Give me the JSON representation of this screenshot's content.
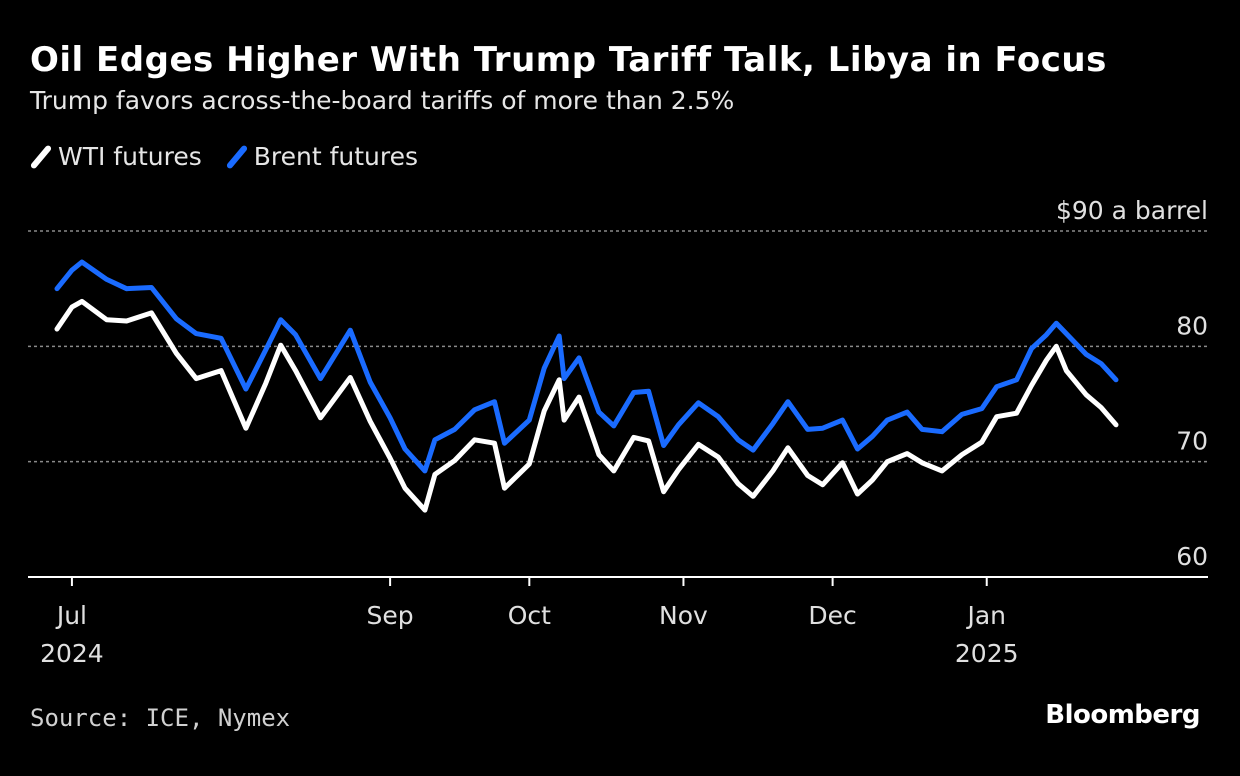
{
  "header": {
    "title": "Oil Edges Higher With Trump Tariff Talk, Libya in Focus",
    "subtitle": "Trump favors across-the-board tariffs of more than 2.5%"
  },
  "legend": [
    {
      "label": "WTI futures",
      "color": "#ffffff"
    },
    {
      "label": "Brent futures",
      "color": "#1a6bff"
    }
  ],
  "footer": {
    "source": "Source: ICE, Nymex",
    "logo": "Bloomberg"
  },
  "chart_data": {
    "type": "line",
    "title": "Oil Edges Higher With Trump Tariff Talk, Libya in Focus",
    "subtitle": "Trump favors across-the-board tariffs of more than 2.5%",
    "xlabel": "",
    "ylabel": "",
    "x_range": [
      "2024-06-28",
      "2025-01-27"
    ],
    "ylim": [
      60,
      90
    ],
    "y_ticks": [
      {
        "value": 90,
        "label": "$90 a barrel"
      },
      {
        "value": 80,
        "label": "80"
      },
      {
        "value": 70,
        "label": "70"
      },
      {
        "value": 60,
        "label": "60"
      }
    ],
    "x_ticks": [
      {
        "date": "2024-07-01",
        "label": "Jul",
        "sublabel": "2024"
      },
      {
        "date": "2024-09-03",
        "label": "Sep",
        "sublabel": ""
      },
      {
        "date": "2024-10-01",
        "label": "Oct",
        "sublabel": ""
      },
      {
        "date": "2024-11-01",
        "label": "Nov",
        "sublabel": ""
      },
      {
        "date": "2024-12-01",
        "label": "Dec",
        "sublabel": ""
      },
      {
        "date": "2025-01-01",
        "label": "Jan",
        "sublabel": "2025"
      }
    ],
    "grid": true,
    "legend_position": "top-left",
    "series": [
      {
        "name": "WTI futures",
        "color": "#ffffff",
        "points": [
          [
            "2024-06-28",
            81.5
          ],
          [
            "2024-07-01",
            83.4
          ],
          [
            "2024-07-03",
            83.9
          ],
          [
            "2024-07-08",
            82.3
          ],
          [
            "2024-07-12",
            82.2
          ],
          [
            "2024-07-17",
            82.9
          ],
          [
            "2024-07-22",
            79.4
          ],
          [
            "2024-07-26",
            77.2
          ],
          [
            "2024-07-31",
            77.9
          ],
          [
            "2024-08-05",
            72.9
          ],
          [
            "2024-08-09",
            76.8
          ],
          [
            "2024-08-12",
            80.1
          ],
          [
            "2024-08-15",
            77.9
          ],
          [
            "2024-08-20",
            73.8
          ],
          [
            "2024-08-26",
            77.3
          ],
          [
            "2024-08-30",
            73.5
          ],
          [
            "2024-09-03",
            70.3
          ],
          [
            "2024-09-06",
            67.7
          ],
          [
            "2024-09-10",
            65.8
          ],
          [
            "2024-09-12",
            68.9
          ],
          [
            "2024-09-16",
            70.1
          ],
          [
            "2024-09-20",
            71.9
          ],
          [
            "2024-09-24",
            71.6
          ],
          [
            "2024-09-26",
            67.7
          ],
          [
            "2024-10-01",
            69.8
          ],
          [
            "2024-10-04",
            74.4
          ],
          [
            "2024-10-07",
            77.1
          ],
          [
            "2024-10-08",
            73.6
          ],
          [
            "2024-10-11",
            75.6
          ],
          [
            "2024-10-15",
            70.6
          ],
          [
            "2024-10-18",
            69.2
          ],
          [
            "2024-10-22",
            72.1
          ],
          [
            "2024-10-25",
            71.8
          ],
          [
            "2024-10-28",
            67.4
          ],
          [
            "2024-10-31",
            69.3
          ],
          [
            "2024-11-04",
            71.5
          ],
          [
            "2024-11-08",
            70.4
          ],
          [
            "2024-11-12",
            68.1
          ],
          [
            "2024-11-15",
            67.0
          ],
          [
            "2024-11-19",
            69.2
          ],
          [
            "2024-11-22",
            71.2
          ],
          [
            "2024-11-26",
            68.8
          ],
          [
            "2024-11-29",
            68.0
          ],
          [
            "2024-12-03",
            69.9
          ],
          [
            "2024-12-06",
            67.2
          ],
          [
            "2024-12-09",
            68.4
          ],
          [
            "2024-12-12",
            70.0
          ],
          [
            "2024-12-16",
            70.7
          ],
          [
            "2024-12-19",
            69.9
          ],
          [
            "2024-12-23",
            69.2
          ],
          [
            "2024-12-27",
            70.6
          ],
          [
            "2024-12-31",
            71.7
          ],
          [
            "2025-01-03",
            73.9
          ],
          [
            "2025-01-07",
            74.2
          ],
          [
            "2025-01-10",
            76.6
          ],
          [
            "2025-01-13",
            78.8
          ],
          [
            "2025-01-15",
            80.0
          ],
          [
            "2025-01-17",
            77.9
          ],
          [
            "2025-01-21",
            75.8
          ],
          [
            "2025-01-24",
            74.7
          ],
          [
            "2025-01-27",
            73.2
          ]
        ]
      },
      {
        "name": "Brent futures",
        "color": "#1a6bff",
        "points": [
          [
            "2024-06-28",
            85.0
          ],
          [
            "2024-07-01",
            86.6
          ],
          [
            "2024-07-03",
            87.3
          ],
          [
            "2024-07-08",
            85.8
          ],
          [
            "2024-07-12",
            85.0
          ],
          [
            "2024-07-17",
            85.1
          ],
          [
            "2024-07-22",
            82.4
          ],
          [
            "2024-07-26",
            81.1
          ],
          [
            "2024-07-31",
            80.7
          ],
          [
            "2024-08-05",
            76.3
          ],
          [
            "2024-08-09",
            79.7
          ],
          [
            "2024-08-12",
            82.3
          ],
          [
            "2024-08-15",
            81.0
          ],
          [
            "2024-08-20",
            77.2
          ],
          [
            "2024-08-26",
            81.4
          ],
          [
            "2024-08-30",
            76.9
          ],
          [
            "2024-09-03",
            73.8
          ],
          [
            "2024-09-06",
            71.1
          ],
          [
            "2024-09-10",
            69.2
          ],
          [
            "2024-09-12",
            71.9
          ],
          [
            "2024-09-16",
            72.8
          ],
          [
            "2024-09-20",
            74.5
          ],
          [
            "2024-09-24",
            75.2
          ],
          [
            "2024-09-26",
            71.6
          ],
          [
            "2024-10-01",
            73.6
          ],
          [
            "2024-10-04",
            78.1
          ],
          [
            "2024-10-07",
            80.9
          ],
          [
            "2024-10-08",
            77.2
          ],
          [
            "2024-10-11",
            79.0
          ],
          [
            "2024-10-15",
            74.3
          ],
          [
            "2024-10-18",
            73.1
          ],
          [
            "2024-10-22",
            76.0
          ],
          [
            "2024-10-25",
            76.1
          ],
          [
            "2024-10-28",
            71.4
          ],
          [
            "2024-10-31",
            73.2
          ],
          [
            "2024-11-04",
            75.1
          ],
          [
            "2024-11-08",
            73.9
          ],
          [
            "2024-11-12",
            71.9
          ],
          [
            "2024-11-15",
            71.0
          ],
          [
            "2024-11-19",
            73.3
          ],
          [
            "2024-11-22",
            75.2
          ],
          [
            "2024-11-26",
            72.8
          ],
          [
            "2024-11-29",
            72.9
          ],
          [
            "2024-12-03",
            73.6
          ],
          [
            "2024-12-06",
            71.1
          ],
          [
            "2024-12-09",
            72.2
          ],
          [
            "2024-12-12",
            73.6
          ],
          [
            "2024-12-16",
            74.3
          ],
          [
            "2024-12-19",
            72.8
          ],
          [
            "2024-12-23",
            72.6
          ],
          [
            "2024-12-27",
            74.1
          ],
          [
            "2024-12-31",
            74.6
          ],
          [
            "2025-01-03",
            76.5
          ],
          [
            "2025-01-07",
            77.1
          ],
          [
            "2025-01-10",
            79.8
          ],
          [
            "2025-01-13",
            81.0
          ],
          [
            "2025-01-15",
            82.0
          ],
          [
            "2025-01-17",
            81.1
          ],
          [
            "2025-01-21",
            79.3
          ],
          [
            "2025-01-24",
            78.5
          ],
          [
            "2025-01-27",
            77.1
          ]
        ]
      }
    ]
  }
}
